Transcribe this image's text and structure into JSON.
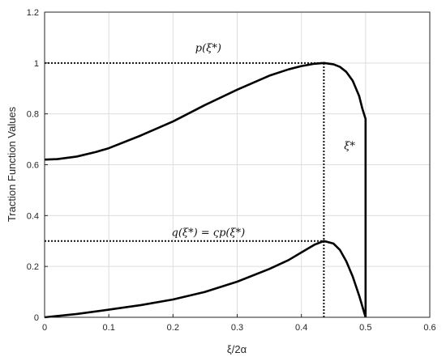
{
  "chart_data": {
    "type": "line",
    "title": "",
    "xlabel": "ξ/2α",
    "ylabel": "Traction Function Values",
    "xlim": [
      0,
      0.6
    ],
    "ylim": [
      0,
      1.2
    ],
    "xticks": [
      "0",
      "0.1",
      "0.2",
      "0.3",
      "0.4",
      "0.5",
      "0.6"
    ],
    "yticks": [
      "0",
      "0.2",
      "0.4",
      "0.6",
      "0.8",
      "1",
      "1.2"
    ],
    "grid": true,
    "legend": "none",
    "series": [
      {
        "x": [
          0,
          0.02,
          0.05,
          0.08,
          0.1,
          0.15,
          0.2,
          0.25,
          0.3,
          0.35,
          0.38,
          0.4,
          0.42,
          0.435,
          0.45,
          0.46,
          0.47,
          0.48,
          0.49,
          0.495,
          0.5,
          0.5
        ],
        "y": [
          0.62,
          0.622,
          0.632,
          0.65,
          0.665,
          0.715,
          0.77,
          0.835,
          0.895,
          0.95,
          0.975,
          0.988,
          0.997,
          1.0,
          0.995,
          0.985,
          0.965,
          0.93,
          0.87,
          0.82,
          0.78,
          0.0
        ]
      },
      {
        "x": [
          0,
          0.05,
          0.1,
          0.15,
          0.2,
          0.25,
          0.3,
          0.35,
          0.38,
          0.4,
          0.42,
          0.435,
          0.45,
          0.46,
          0.47,
          0.48,
          0.49,
          0.5
        ],
        "y": [
          0.0,
          0.013,
          0.03,
          0.048,
          0.07,
          0.1,
          0.14,
          0.19,
          0.225,
          0.255,
          0.285,
          0.3,
          0.29,
          0.265,
          0.22,
          0.16,
          0.085,
          0.0
        ]
      }
    ],
    "reference_lines": [
      {
        "kind": "hline",
        "y": 1.0,
        "x_from": 0,
        "x_to": 0.435
      },
      {
        "kind": "hline",
        "y": 0.3,
        "x_from": 0,
        "x_to": 0.435
      },
      {
        "kind": "vline",
        "x": 0.435,
        "y_from": 0,
        "y_to": 1.0
      }
    ],
    "annotations": [
      {
        "text": "p(ξ*)",
        "x": 0.255,
        "y": 1.045
      },
      {
        "text": "q(ξ*) = ςp(ξ*)",
        "x": 0.255,
        "y": 0.32
      },
      {
        "text": "ξ*",
        "x": 0.475,
        "y": 0.66
      }
    ]
  }
}
